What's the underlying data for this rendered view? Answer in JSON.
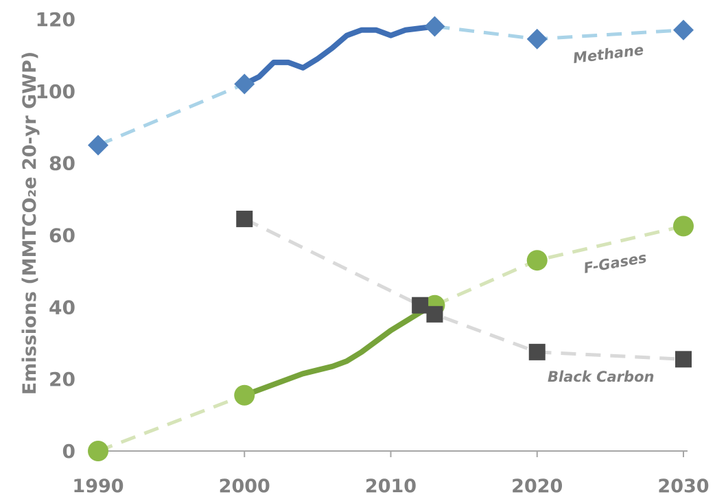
{
  "chart_data": {
    "type": "line",
    "xlabel": "",
    "ylabel": "Emissions (MMTCO₂e 20-yr GWP)",
    "xlim": [
      1990,
      2030
    ],
    "ylim": [
      0,
      120
    ],
    "x_ticks": [
      "1990",
      "2000",
      "2010",
      "2020",
      "2030"
    ],
    "y_ticks": [
      "0",
      "20",
      "40",
      "60",
      "80",
      "100",
      "120"
    ],
    "grid": false,
    "series": [
      {
        "name": "Methane",
        "color": "#3f6fb5",
        "projection_color": "#a9d3e8",
        "marker": "diamond",
        "marker_color": "#4f81bd",
        "historical": {
          "x": [
            2000,
            2001,
            2002,
            2003,
            2004,
            2005,
            2006,
            2007,
            2008,
            2009,
            2010,
            2011,
            2012,
            2013
          ],
          "y": [
            102,
            104,
            108,
            108,
            106.5,
            109,
            112,
            115.5,
            117,
            117,
            115.5,
            117,
            117.5,
            118
          ]
        },
        "projection": {
          "x": [
            1990,
            2000
          ],
          "y": [
            85,
            102
          ]
        },
        "projection_future": {
          "x": [
            2013,
            2020,
            2030
          ],
          "y": [
            118,
            114.5,
            117
          ]
        },
        "markers": {
          "x": [
            1990,
            2000,
            2013,
            2020,
            2030
          ],
          "y": [
            85,
            102,
            118,
            114.5,
            117
          ]
        }
      },
      {
        "name": "F-Gases",
        "color": "#77a33a",
        "projection_color": "#d6e4b8",
        "marker": "circle",
        "marker_color": "#8dba47",
        "historical": {
          "x": [
            2000,
            2002,
            2004,
            2006,
            2007,
            2008,
            2009,
            2010,
            2011,
            2012,
            2013
          ],
          "y": [
            15.5,
            18.5,
            21.5,
            23.5,
            25,
            27.5,
            30.5,
            33.5,
            36,
            38.5,
            40.5
          ]
        },
        "projection": {
          "x": [
            1990,
            2000
          ],
          "y": [
            0,
            15.5
          ]
        },
        "projection_future": {
          "x": [
            2013,
            2020,
            2030
          ],
          "y": [
            40.5,
            53,
            62.5
          ]
        },
        "markers": {
          "x": [
            1990,
            2000,
            2013,
            2020,
            2030
          ],
          "y": [
            0,
            15.5,
            40.5,
            53,
            62.5
          ]
        }
      },
      {
        "name": "Black Carbon",
        "color": "#d9d9d9",
        "projection_color": "#d9d9d9",
        "marker": "square",
        "marker_color": "#4a4a4a",
        "historical": {
          "x": [],
          "y": []
        },
        "projection": {
          "x": [
            2000,
            2012,
            2013,
            2020,
            2030
          ],
          "y": [
            64.5,
            40.5,
            38,
            27.5,
            25.5
          ]
        },
        "projection_future": {
          "x": [],
          "y": []
        },
        "markers": {
          "x": [
            2000,
            2012,
            2013,
            2020,
            2030
          ],
          "y": [
            64.5,
            40.5,
            38,
            27.5,
            25.5
          ]
        }
      }
    ]
  },
  "labels": {
    "methane": "Methane",
    "fgases": "F-Gases",
    "blackcarbon": "Black Carbon"
  }
}
